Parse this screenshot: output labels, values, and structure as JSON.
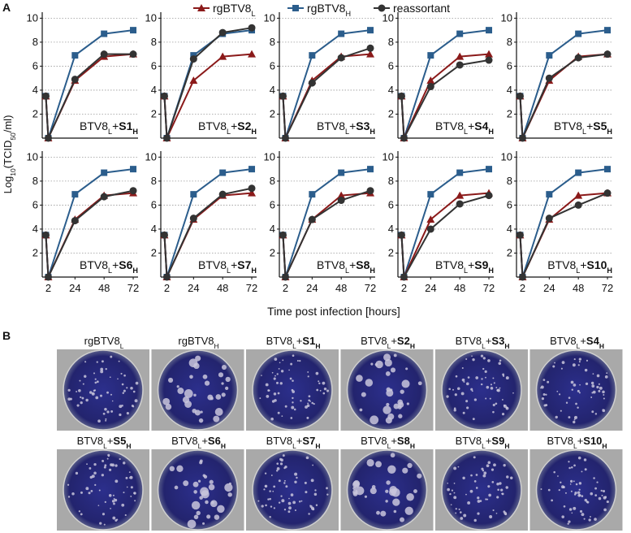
{
  "panel_labels": {
    "a": "A",
    "b": "B"
  },
  "legend": [
    {
      "name": [
        {
          "t": "rgBTV8"
        },
        {
          "t": "L",
          "sub": true
        }
      ],
      "color": "#8b1a1a",
      "marker": "triangle"
    },
    {
      "name": [
        {
          "t": "rgBTV8"
        },
        {
          "t": "H",
          "sub": true
        }
      ],
      "color": "#2b5d8c",
      "marker": "square"
    },
    {
      "name": [
        {
          "t": "reassortant"
        }
      ],
      "color": "#333333",
      "marker": "circle"
    }
  ],
  "ylabel": [
    {
      "t": "Log"
    },
    {
      "t": "10",
      "sub": true
    },
    {
      "t": "(TCID"
    },
    {
      "t": "50",
      "sub": true
    },
    {
      "t": "/ml)"
    }
  ],
  "xlabel": "Time post infection [hours]",
  "chart_data": [
    {
      "type": "line",
      "annotation": [
        {
          "t": "BTV8"
        },
        {
          "t": "L",
          "sub": true
        },
        {
          "t": "+"
        },
        {
          "t": "S1",
          "b": true
        },
        {
          "t": "H",
          "sub": true,
          "b": true
        }
      ],
      "x": [
        0,
        2,
        24,
        48,
        72
      ],
      "xlim": [
        -3,
        76
      ],
      "ylim": [
        0,
        10.5
      ],
      "yticks": [
        2,
        4,
        6,
        8,
        10
      ],
      "grid": true,
      "series": [
        {
          "values": [
            3.5,
            0,
            4.8,
            6.8,
            7.0
          ]
        },
        {
          "values": [
            3.5,
            0,
            6.9,
            8.7,
            9.0
          ]
        },
        {
          "values": [
            3.5,
            0,
            4.9,
            7.0,
            7.0
          ]
        }
      ]
    },
    {
      "type": "line",
      "annotation": [
        {
          "t": "BTV8"
        },
        {
          "t": "L",
          "sub": true
        },
        {
          "t": "+"
        },
        {
          "t": "S2",
          "b": true
        },
        {
          "t": "H",
          "sub": true,
          "b": true
        }
      ],
      "x": [
        0,
        2,
        24,
        48,
        72
      ],
      "xlim": [
        -3,
        76
      ],
      "ylim": [
        0,
        10.5
      ],
      "yticks": [
        2,
        4,
        6,
        8,
        10
      ],
      "grid": true,
      "series": [
        {
          "values": [
            3.5,
            0,
            4.8,
            6.8,
            7.0
          ]
        },
        {
          "values": [
            3.5,
            0,
            6.9,
            8.7,
            9.0
          ]
        },
        {
          "values": [
            3.5,
            0,
            6.6,
            8.8,
            9.2
          ]
        }
      ]
    },
    {
      "type": "line",
      "annotation": [
        {
          "t": "BTV8"
        },
        {
          "t": "L",
          "sub": true
        },
        {
          "t": "+"
        },
        {
          "t": "S3",
          "b": true
        },
        {
          "t": "H",
          "sub": true,
          "b": true
        }
      ],
      "x": [
        0,
        2,
        24,
        48,
        72
      ],
      "xlim": [
        -3,
        76
      ],
      "ylim": [
        0,
        10.5
      ],
      "yticks": [
        2,
        4,
        6,
        8,
        10
      ],
      "grid": true,
      "series": [
        {
          "values": [
            3.5,
            0,
            4.8,
            6.8,
            7.0
          ]
        },
        {
          "values": [
            3.5,
            0,
            6.9,
            8.7,
            9.0
          ]
        },
        {
          "values": [
            3.5,
            0,
            4.6,
            6.7,
            7.5
          ]
        }
      ]
    },
    {
      "type": "line",
      "annotation": [
        {
          "t": "BTV8"
        },
        {
          "t": "L",
          "sub": true
        },
        {
          "t": "+"
        },
        {
          "t": "S4",
          "b": true
        },
        {
          "t": "H",
          "sub": true,
          "b": true
        }
      ],
      "x": [
        0,
        2,
        24,
        48,
        72
      ],
      "xlim": [
        -3,
        76
      ],
      "ylim": [
        0,
        10.5
      ],
      "yticks": [
        2,
        4,
        6,
        8,
        10
      ],
      "grid": true,
      "series": [
        {
          "values": [
            3.5,
            0,
            4.8,
            6.8,
            7.0
          ]
        },
        {
          "values": [
            3.5,
            0,
            6.9,
            8.7,
            9.0
          ]
        },
        {
          "values": [
            3.5,
            0,
            4.3,
            6.1,
            6.5
          ]
        }
      ]
    },
    {
      "type": "line",
      "annotation": [
        {
          "t": "BTV8"
        },
        {
          "t": "L",
          "sub": true
        },
        {
          "t": "+"
        },
        {
          "t": "S5",
          "b": true
        },
        {
          "t": "H",
          "sub": true,
          "b": true
        }
      ],
      "x": [
        0,
        2,
        24,
        48,
        72
      ],
      "xlim": [
        -3,
        76
      ],
      "ylim": [
        0,
        10.5
      ],
      "yticks": [
        2,
        4,
        6,
        8,
        10
      ],
      "grid": true,
      "series": [
        {
          "values": [
            3.5,
            0,
            4.8,
            6.8,
            7.0
          ]
        },
        {
          "values": [
            3.5,
            0,
            6.9,
            8.7,
            9.0
          ]
        },
        {
          "values": [
            3.5,
            0,
            5.0,
            6.7,
            7.0
          ]
        }
      ]
    },
    {
      "type": "line",
      "annotation": [
        {
          "t": "BTV8"
        },
        {
          "t": "L",
          "sub": true
        },
        {
          "t": "+"
        },
        {
          "t": "S6",
          "b": true
        },
        {
          "t": "H",
          "sub": true,
          "b": true
        }
      ],
      "x": [
        0,
        2,
        24,
        48,
        72
      ],
      "xlim": [
        -3,
        76
      ],
      "ylim": [
        0,
        10.5
      ],
      "yticks": [
        2,
        4,
        6,
        8,
        10
      ],
      "xticks": [
        2,
        24,
        48,
        72
      ],
      "grid": true,
      "series": [
        {
          "values": [
            3.5,
            0,
            4.8,
            6.8,
            7.0
          ]
        },
        {
          "values": [
            3.5,
            0,
            6.9,
            8.7,
            9.0
          ]
        },
        {
          "values": [
            3.5,
            0,
            4.7,
            6.7,
            7.2
          ]
        }
      ]
    },
    {
      "type": "line",
      "annotation": [
        {
          "t": "BTV8"
        },
        {
          "t": "L",
          "sub": true
        },
        {
          "t": "+"
        },
        {
          "t": "S7",
          "b": true
        },
        {
          "t": "H",
          "sub": true,
          "b": true
        }
      ],
      "x": [
        0,
        2,
        24,
        48,
        72
      ],
      "xlim": [
        -3,
        76
      ],
      "ylim": [
        0,
        10.5
      ],
      "yticks": [
        2,
        4,
        6,
        8,
        10
      ],
      "xticks": [
        2,
        24,
        48,
        72
      ],
      "grid": true,
      "series": [
        {
          "values": [
            3.5,
            0,
            4.8,
            6.8,
            7.0
          ]
        },
        {
          "values": [
            3.5,
            0,
            6.9,
            8.7,
            9.0
          ]
        },
        {
          "values": [
            3.5,
            0,
            4.9,
            6.9,
            7.4
          ]
        }
      ]
    },
    {
      "type": "line",
      "annotation": [
        {
          "t": "BTV8"
        },
        {
          "t": "L",
          "sub": true
        },
        {
          "t": "+"
        },
        {
          "t": "S8",
          "b": true
        },
        {
          "t": "H",
          "sub": true,
          "b": true
        }
      ],
      "x": [
        0,
        2,
        24,
        48,
        72
      ],
      "xlim": [
        -3,
        76
      ],
      "ylim": [
        0,
        10.5
      ],
      "yticks": [
        2,
        4,
        6,
        8,
        10
      ],
      "xticks": [
        2,
        24,
        48,
        72
      ],
      "grid": true,
      "series": [
        {
          "values": [
            3.5,
            0,
            4.8,
            6.8,
            7.0
          ]
        },
        {
          "values": [
            3.5,
            0,
            6.9,
            8.7,
            9.0
          ]
        },
        {
          "values": [
            3.5,
            0,
            4.8,
            6.4,
            7.2
          ]
        }
      ]
    },
    {
      "type": "line",
      "annotation": [
        {
          "t": "BTV8"
        },
        {
          "t": "L",
          "sub": true
        },
        {
          "t": "+"
        },
        {
          "t": "S9",
          "b": true
        },
        {
          "t": "H",
          "sub": true,
          "b": true
        }
      ],
      "x": [
        0,
        2,
        24,
        48,
        72
      ],
      "xlim": [
        -3,
        76
      ],
      "ylim": [
        0,
        10.5
      ],
      "yticks": [
        2,
        4,
        6,
        8,
        10
      ],
      "xticks": [
        2,
        24,
        48,
        72
      ],
      "grid": true,
      "series": [
        {
          "values": [
            3.5,
            0,
            4.8,
            6.8,
            7.0
          ]
        },
        {
          "values": [
            3.5,
            0,
            6.9,
            8.7,
            9.0
          ]
        },
        {
          "values": [
            3.5,
            0,
            4.0,
            6.1,
            6.8
          ]
        }
      ]
    },
    {
      "type": "line",
      "annotation": [
        {
          "t": "BTV8"
        },
        {
          "t": "L",
          "sub": true
        },
        {
          "t": "+"
        },
        {
          "t": "S10",
          "b": true
        },
        {
          "t": "H",
          "sub": true,
          "b": true
        }
      ],
      "x": [
        0,
        2,
        24,
        48,
        72
      ],
      "xlim": [
        -3,
        76
      ],
      "ylim": [
        0,
        10.5
      ],
      "yticks": [
        2,
        4,
        6,
        8,
        10
      ],
      "xticks": [
        2,
        24,
        48,
        72
      ],
      "grid": true,
      "series": [
        {
          "values": [
            3.5,
            0,
            4.8,
            6.8,
            7.0
          ]
        },
        {
          "values": [
            3.5,
            0,
            6.9,
            8.7,
            9.0
          ]
        },
        {
          "values": [
            3.5,
            0,
            4.9,
            6.0,
            7.0
          ]
        }
      ]
    }
  ],
  "plates": [
    {
      "label": [
        {
          "t": "rgBTV8"
        },
        {
          "t": "L",
          "sub": true
        }
      ]
    },
    {
      "label": [
        {
          "t": "rgBTV8"
        },
        {
          "t": "H",
          "sub": true
        }
      ]
    },
    {
      "label": [
        {
          "t": "BTV8"
        },
        {
          "t": "L",
          "sub": true
        },
        {
          "t": "+"
        },
        {
          "t": "S1",
          "b": true
        },
        {
          "t": "H",
          "sub": true,
          "b": true
        }
      ]
    },
    {
      "label": [
        {
          "t": "BTV8"
        },
        {
          "t": "L",
          "sub": true
        },
        {
          "t": "+"
        },
        {
          "t": "S2",
          "b": true
        },
        {
          "t": "H",
          "sub": true,
          "b": true
        }
      ]
    },
    {
      "label": [
        {
          "t": "BTV8"
        },
        {
          "t": "L",
          "sub": true
        },
        {
          "t": "+"
        },
        {
          "t": "S3",
          "b": true
        },
        {
          "t": "H",
          "sub": true,
          "b": true
        }
      ]
    },
    {
      "label": [
        {
          "t": "BTV8"
        },
        {
          "t": "L",
          "sub": true
        },
        {
          "t": "+"
        },
        {
          "t": "S4",
          "b": true
        },
        {
          "t": "H",
          "sub": true,
          "b": true
        }
      ]
    },
    {
      "label": [
        {
          "t": "BTV8"
        },
        {
          "t": "L",
          "sub": true
        },
        {
          "t": "+"
        },
        {
          "t": "S5",
          "b": true
        },
        {
          "t": "H",
          "sub": true,
          "b": true
        }
      ]
    },
    {
      "label": [
        {
          "t": "BTV8"
        },
        {
          "t": "L",
          "sub": true
        },
        {
          "t": "+"
        },
        {
          "t": "S6",
          "b": true
        },
        {
          "t": "H",
          "sub": true,
          "b": true
        }
      ]
    },
    {
      "label": [
        {
          "t": "BTV8"
        },
        {
          "t": "L",
          "sub": true
        },
        {
          "t": "+"
        },
        {
          "t": "S7",
          "b": true
        },
        {
          "t": "H",
          "sub": true,
          "b": true
        }
      ]
    },
    {
      "label": [
        {
          "t": "BTV8"
        },
        {
          "t": "L",
          "sub": true
        },
        {
          "t": "+"
        },
        {
          "t": "S8",
          "b": true
        },
        {
          "t": "H",
          "sub": true,
          "b": true
        }
      ]
    },
    {
      "label": [
        {
          "t": "BTV8"
        },
        {
          "t": "L",
          "sub": true
        },
        {
          "t": "+"
        },
        {
          "t": "S9",
          "b": true
        },
        {
          "t": "H",
          "sub": true,
          "b": true
        }
      ]
    },
    {
      "label": [
        {
          "t": "BTV8"
        },
        {
          "t": "L",
          "sub": true
        },
        {
          "t": "+"
        },
        {
          "t": "S10",
          "b": true
        },
        {
          "t": "H",
          "sub": true,
          "b": true
        }
      ]
    }
  ]
}
